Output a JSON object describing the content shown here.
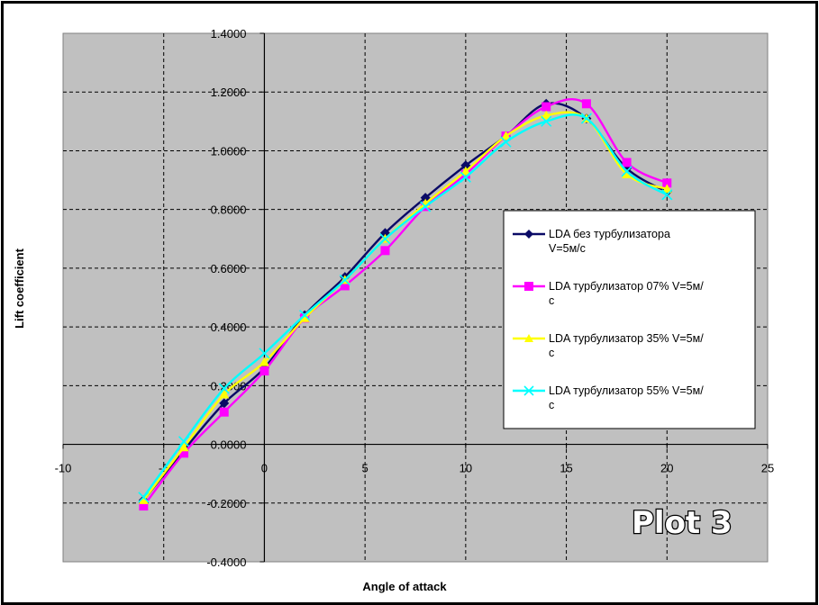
{
  "badge": "Plot 3",
  "chart_data": {
    "type": "line",
    "xlabel": "Angle of attack",
    "ylabel": "Lift coefficient",
    "xlim": [
      -10,
      25
    ],
    "ylim": [
      -0.4,
      1.4
    ],
    "xticks": [
      "-10",
      "-5",
      "0",
      "5",
      "10",
      "15",
      "20",
      "25"
    ],
    "yticks": [
      "1.4000",
      "1.2000",
      "1.0000",
      "0.8000",
      "0.6000",
      "0.4000",
      "0.2000",
      "0.0000",
      "-0.2000",
      "-0.4000"
    ],
    "grid": true,
    "legend_position": "right",
    "x": [
      -6,
      -4,
      -2,
      0,
      2,
      4,
      6,
      8,
      10,
      12,
      14,
      16,
      18,
      20
    ],
    "series": [
      {
        "name": "LDA без турбулизатора V=5м/с",
        "color": "#0a0a66",
        "marker": "diamond",
        "values": [
          -0.19,
          -0.02,
          0.14,
          0.26,
          0.44,
          0.57,
          0.72,
          0.84,
          0.95,
          1.05,
          1.16,
          1.11,
          0.94,
          0.86
        ]
      },
      {
        "name": "LDA турбулизатор 07% V=5м/с",
        "color": "#ff00ff",
        "marker": "square",
        "values": [
          -0.21,
          -0.03,
          0.11,
          0.25,
          0.43,
          0.54,
          0.66,
          0.81,
          0.92,
          1.05,
          1.15,
          1.16,
          0.96,
          0.89
        ]
      },
      {
        "name": "LDA турбулизатор 35% V=5м/с",
        "color": "#ffff00",
        "marker": "triangle",
        "values": [
          -0.19,
          -0.01,
          0.17,
          0.28,
          0.43,
          0.56,
          0.7,
          0.82,
          0.93,
          1.05,
          1.12,
          1.11,
          0.92,
          0.87
        ]
      },
      {
        "name": "LDA турбулизатор 55% V=5м/с",
        "color": "#00ffff",
        "marker": "x",
        "values": [
          -0.18,
          0.01,
          0.19,
          0.31,
          0.44,
          0.56,
          0.7,
          0.81,
          0.91,
          1.03,
          1.1,
          1.11,
          0.93,
          0.85
        ]
      }
    ]
  }
}
